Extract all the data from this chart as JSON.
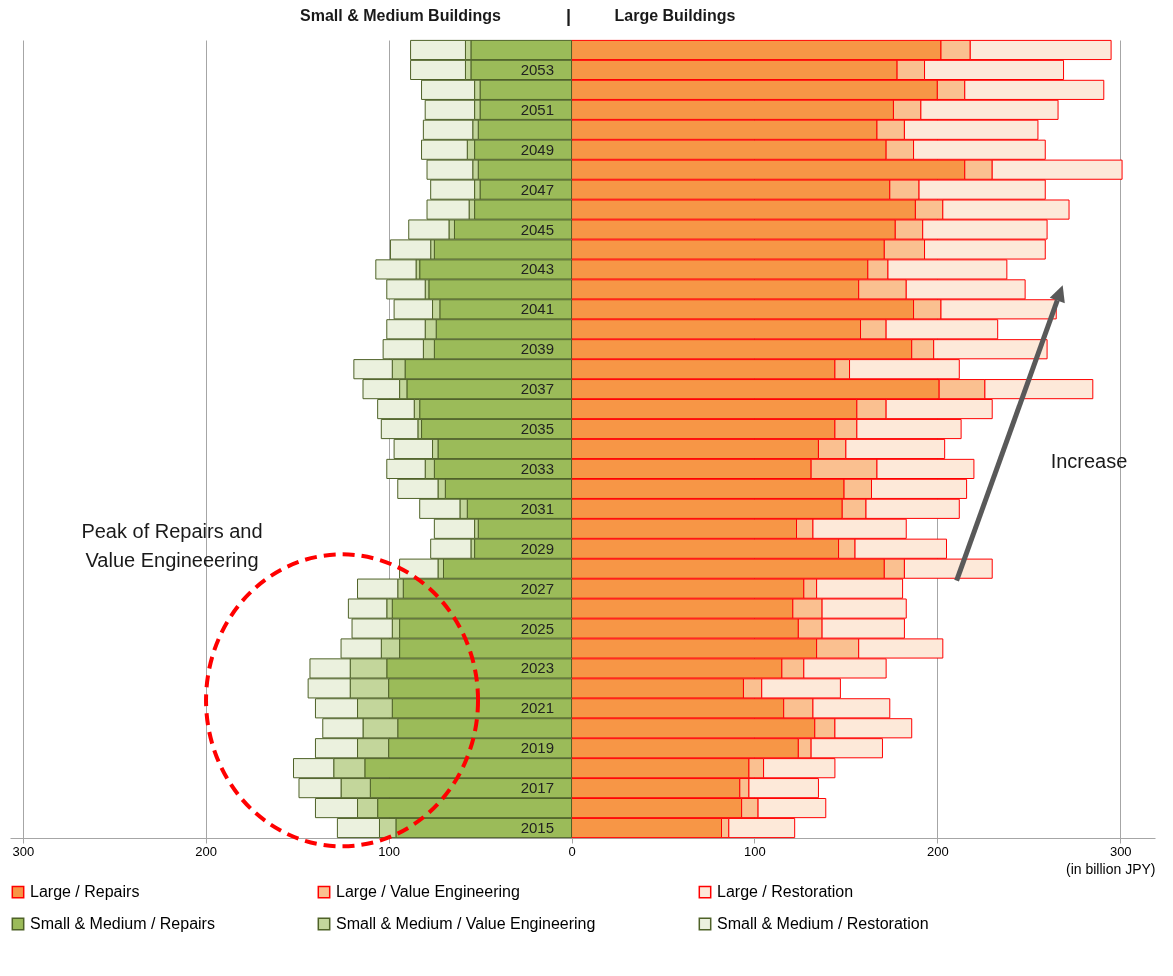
{
  "chart_data": {
    "type": "bar",
    "orientation": "horizontal",
    "stacked": true,
    "categories": [
      null,
      "2053",
      null,
      "2051",
      null,
      "2049",
      null,
      "2047",
      null,
      "2045",
      null,
      "2043",
      null,
      "2041",
      null,
      "2039",
      null,
      "2037",
      null,
      "2035",
      null,
      "2033",
      null,
      "2031",
      null,
      "2029",
      null,
      "2027",
      null,
      "2025",
      null,
      "2023",
      null,
      "2021",
      null,
      "2019",
      null,
      "2017",
      null,
      "2015"
    ],
    "series": [
      {
        "name": "Large / Repairs",
        "color": "#f79646",
        "values": [
          202,
          178,
          200,
          176,
          167,
          172,
          215,
          174,
          188,
          177,
          171,
          162,
          157,
          187,
          158,
          186,
          144,
          201,
          156,
          144,
          135,
          131,
          149,
          148,
          123,
          146,
          171,
          127,
          121,
          124,
          134,
          115,
          94,
          116,
          133,
          124,
          97,
          92,
          93,
          82
        ]
      },
      {
        "name": "Large / Value Engineering",
        "color": "#fac090",
        "values": [
          16,
          15,
          15,
          15,
          15,
          15,
          15,
          16,
          15,
          15,
          22,
          11,
          26,
          15,
          14,
          12,
          8,
          25,
          16,
          12,
          15,
          36,
          15,
          13,
          9,
          9,
          11,
          7,
          16,
          13,
          23,
          12,
          10,
          16,
          11,
          7,
          8,
          5,
          9,
          4
        ]
      },
      {
        "name": "Large / Restoration",
        "color": "#fde9d9",
        "values": [
          77,
          76,
          76,
          75,
          73,
          72,
          71,
          69,
          69,
          68,
          66,
          65,
          65,
          63,
          61,
          62,
          60,
          59,
          58,
          57,
          54,
          53,
          52,
          51,
          51,
          50,
          48,
          47,
          46,
          45,
          46,
          45,
          43,
          42,
          42,
          39,
          39,
          38,
          37,
          36
        ]
      },
      {
        "name": "Small & Medium / Repairs",
        "color": "#9bbb59",
        "values": [
          -55,
          -55,
          -50,
          -50,
          -51,
          -53,
          -51,
          -50,
          -53,
          -64,
          -75,
          -83,
          -78,
          -72,
          -74,
          -75,
          -91,
          -90,
          -83,
          -82,
          -73,
          -75,
          -69,
          -57,
          -51,
          -53,
          -70,
          -92,
          -98,
          -94,
          -94,
          -101,
          -100,
          -98,
          -95,
          -100,
          -113,
          -110,
          -106,
          -96
        ]
      },
      {
        "name": "Small & Medium / Value Engineering",
        "color": "#c3d69b",
        "values": [
          -3,
          -3,
          -3,
          -3,
          -3,
          -4,
          -3,
          -3,
          -3,
          -3,
          -2,
          -2,
          -2,
          -4,
          -6,
          -6,
          -7,
          -4,
          -3,
          -2,
          -3,
          -5,
          -4,
          -4,
          -2,
          -2,
          -3,
          -3,
          -3,
          -4,
          -10,
          -20,
          -21,
          -19,
          -19,
          -17,
          -17,
          -16,
          -11,
          -9
        ]
      },
      {
        "name": "Small & Medium / Restoration",
        "color": "#ebf1de",
        "values": [
          -30,
          -30,
          -29,
          -27,
          -27,
          -25,
          -25,
          -24,
          -23,
          -22,
          -22,
          -22,
          -21,
          -21,
          -21,
          -22,
          -21,
          -20,
          -20,
          -20,
          -21,
          -21,
          -22,
          -22,
          -22,
          -22,
          -21,
          -22,
          -21,
          -22,
          -22,
          -22,
          -23,
          -23,
          -22,
          -23,
          -22,
          -23,
          -23,
          -23
        ]
      }
    ],
    "xlim": [
      -307,
      319
    ],
    "xticks": [
      {
        "value": -300,
        "label": "300"
      },
      {
        "value": -200,
        "label": "200"
      },
      {
        "value": -100,
        "label": "100"
      },
      0,
      100,
      200,
      300
    ],
    "xlabel": "(in billion JPY)",
    "grid": "x",
    "legend": "bottom",
    "annotations": [
      "Small & Medium Buildings",
      "|",
      "Large Buildings",
      "Peak of Repairs and\nValue Engineeering",
      "Increase"
    ]
  }
}
